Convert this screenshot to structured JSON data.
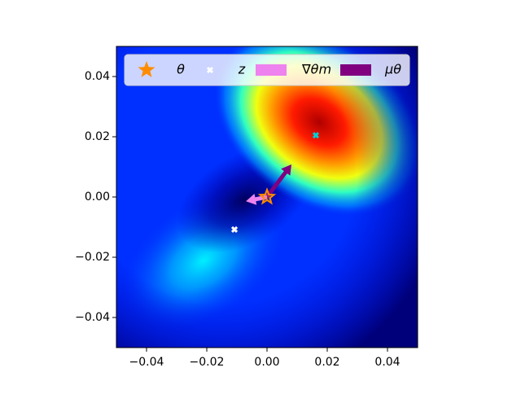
{
  "chart_data": {
    "type": "scatter",
    "xlim": [
      -0.05,
      0.05
    ],
    "ylim": [
      -0.05,
      0.05
    ],
    "xticks": [
      {
        "value": -0.04,
        "label": "−0.04"
      },
      {
        "value": -0.02,
        "label": "−0.02"
      },
      {
        "value": 0,
        "label": "0.00"
      },
      {
        "value": 0.02,
        "label": "0.02"
      },
      {
        "value": 0.04,
        "label": "0.04"
      }
    ],
    "yticks": [
      {
        "value": -0.04,
        "label": "−0.04"
      },
      {
        "value": -0.02,
        "label": "−0.02"
      },
      {
        "value": 0,
        "label": "0.00"
      },
      {
        "value": 0.02,
        "label": "0.02"
      },
      {
        "value": 0.04,
        "label": "0.04"
      }
    ],
    "series": [
      {
        "name": "θ",
        "marker": "star",
        "color": "#ff8c00",
        "x": [
          0
        ],
        "y": [
          0
        ]
      },
      {
        "name": "z",
        "marker": "x",
        "colors": [
          "#ffffff",
          "#00ced1"
        ],
        "x": [
          -0.0108,
          0.0162
        ],
        "y": [
          -0.0108,
          0.0205
        ]
      }
    ],
    "arrows": [
      {
        "name": "∇θm",
        "color": "#ee82ee",
        "x": 0,
        "y": 0,
        "dx": -0.007,
        "dy": -0.0014
      },
      {
        "name": "μθ",
        "color": "#800080",
        "x": 0,
        "y": 0,
        "dx": 0.0081,
        "dy": 0.0108
      }
    ]
  }
}
